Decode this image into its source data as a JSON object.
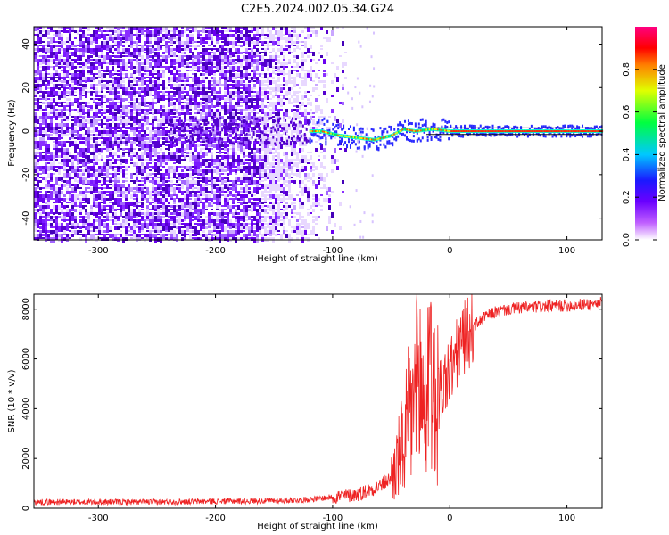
{
  "title": "C2E5.2024.002.05.34.G24",
  "colors": {
    "snr_line": "#ee2222",
    "spectrogram_noise": "#7a1aff",
    "axis": "#000000"
  },
  "chart_data": [
    {
      "type": "heatmap",
      "xlabel": "Height of straight line (km)",
      "ylabel": "Frequency (Hz)",
      "xlim": [
        -355,
        130
      ],
      "ylim": [
        -50,
        48
      ],
      "xticks": [
        -300,
        -200,
        -100,
        0,
        100
      ],
      "yticks": [
        -40,
        -20,
        0,
        20,
        40
      ],
      "colorbar": {
        "label": "Normalized spectral amplitude",
        "range": [
          0.0,
          1.0
        ],
        "ticks": [
          0.0,
          0.2,
          0.4,
          0.6,
          0.8
        ],
        "colormap": [
          "#ffffff",
          "#9b00ff",
          "#1a1aff",
          "#00d0ff",
          "#00ff00",
          "#ffff00",
          "#ff0000",
          "#ff0080"
        ]
      },
      "ridge": {
        "description_points": [
          {
            "x": -160,
            "freq": 0
          },
          {
            "x": -110,
            "freq": 0
          },
          {
            "x": -95,
            "freq": -2
          },
          {
            "x": -80,
            "freq": -3
          },
          {
            "x": -65,
            "freq": -4
          },
          {
            "x": -50,
            "freq": -2
          },
          {
            "x": -40,
            "freq": 1
          },
          {
            "x": -30,
            "freq": 0
          },
          {
            "x": -15,
            "freq": 1
          },
          {
            "x": 0,
            "freq": 0
          },
          {
            "x": 130,
            "freq": 0
          }
        ]
      }
    },
    {
      "type": "line",
      "xlabel": "Height of straight line (km)",
      "ylabel": "SNR (10 * v/v)",
      "xlim": [
        -355,
        130
      ],
      "ylim": [
        0,
        8600
      ],
      "xticks": [
        -300,
        -200,
        -100,
        0,
        100
      ],
      "yticks": [
        0,
        2000,
        4000,
        6000,
        8000
      ],
      "series": [
        {
          "x": [
            -355,
            -300,
            -250,
            -200,
            -150,
            -120,
            -100,
            -90,
            -80,
            -70,
            -60,
            -50,
            -45,
            -40,
            -35,
            -30,
            -25,
            -20,
            -15,
            -10,
            -5,
            0,
            5,
            10,
            20,
            30,
            40,
            50,
            60,
            80,
            100,
            120,
            130
          ],
          "values": [
            250,
            250,
            250,
            280,
            300,
            350,
            450,
            500,
            550,
            700,
            900,
            1200,
            1800,
            2500,
            3500,
            4500,
            5000,
            3500,
            4000,
            4500,
            5000,
            5500,
            6000,
            6700,
            7300,
            7700,
            7900,
            8000,
            8050,
            8100,
            8150,
            8200,
            8250
          ]
        }
      ]
    }
  ]
}
